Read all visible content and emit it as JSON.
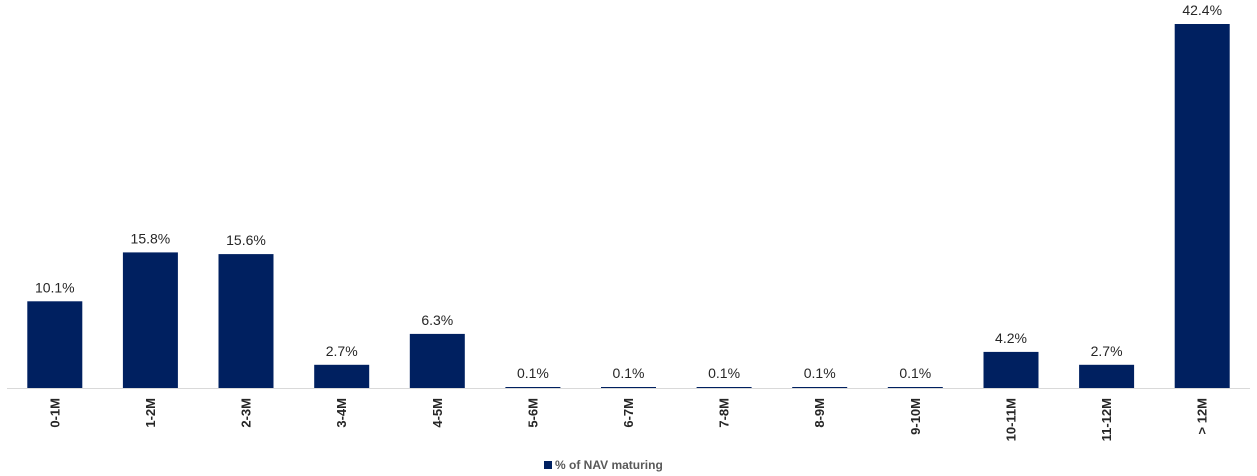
{
  "chart_data": {
    "type": "bar",
    "categories": [
      "0-1M",
      "1-2M",
      "2-3M",
      "3-4M",
      "4-5M",
      "5-6M",
      "6-7M",
      "7-8M",
      "8-9M",
      "9-10M",
      "10-11M",
      "11-12M",
      "> 12M"
    ],
    "series": [
      {
        "name": "% of NAV maturing",
        "values": [
          10.1,
          15.8,
          15.6,
          2.7,
          6.3,
          0.1,
          0.1,
          0.1,
          0.1,
          0.1,
          4.2,
          2.7,
          42.4
        ],
        "labels": [
          "10.1%",
          "15.8%",
          "15.6%",
          "2.7%",
          "6.3%",
          "0.1%",
          "0.1%",
          "0.1%",
          "0.1%",
          "0.1%",
          "4.2%",
          "2.7%",
          "42.4%"
        ]
      }
    ],
    "ylim": [
      0,
      42.4
    ],
    "grid": false,
    "legend_position": "bottom",
    "colors": {
      "bar": "#002060",
      "axis": "#d9d9d9"
    }
  }
}
